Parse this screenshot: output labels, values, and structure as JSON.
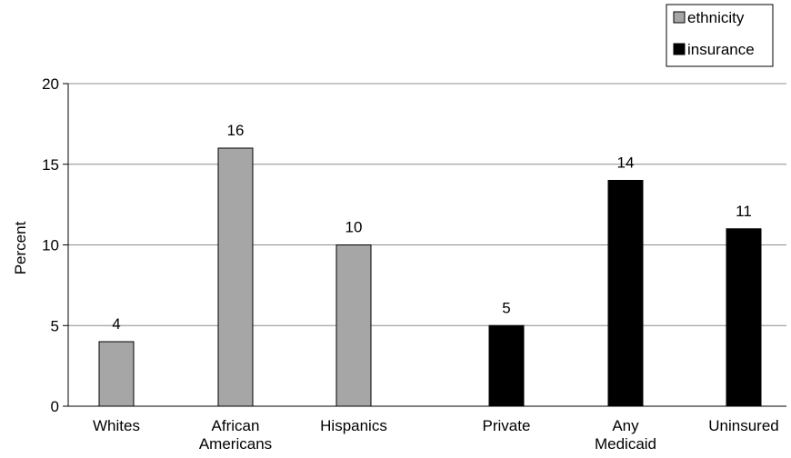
{
  "chart_data": {
    "type": "bar",
    "ylabel": "Percent",
    "xlabel": "",
    "ylim": [
      0,
      20
    ],
    "yticks": [
      0,
      5,
      10,
      15,
      20
    ],
    "grid": true,
    "legend_position": "top-right",
    "series": [
      {
        "name": "ethnicity",
        "color": "#a6a6a6"
      },
      {
        "name": "insurance",
        "color": "#000000"
      }
    ],
    "bars": [
      {
        "category": [
          "Whites"
        ],
        "value": 4,
        "series": "ethnicity"
      },
      {
        "category": [
          "African",
          "Americans"
        ],
        "value": 16,
        "series": "ethnicity"
      },
      {
        "category": [
          "Hispanics"
        ],
        "value": 10,
        "series": "ethnicity"
      },
      {
        "category": [
          "Private"
        ],
        "value": 5,
        "series": "insurance"
      },
      {
        "category": [
          "Any",
          "Medicaid"
        ],
        "value": 14,
        "series": "insurance"
      },
      {
        "category": [
          "Uninsured"
        ],
        "value": 11,
        "series": "insurance"
      }
    ]
  }
}
